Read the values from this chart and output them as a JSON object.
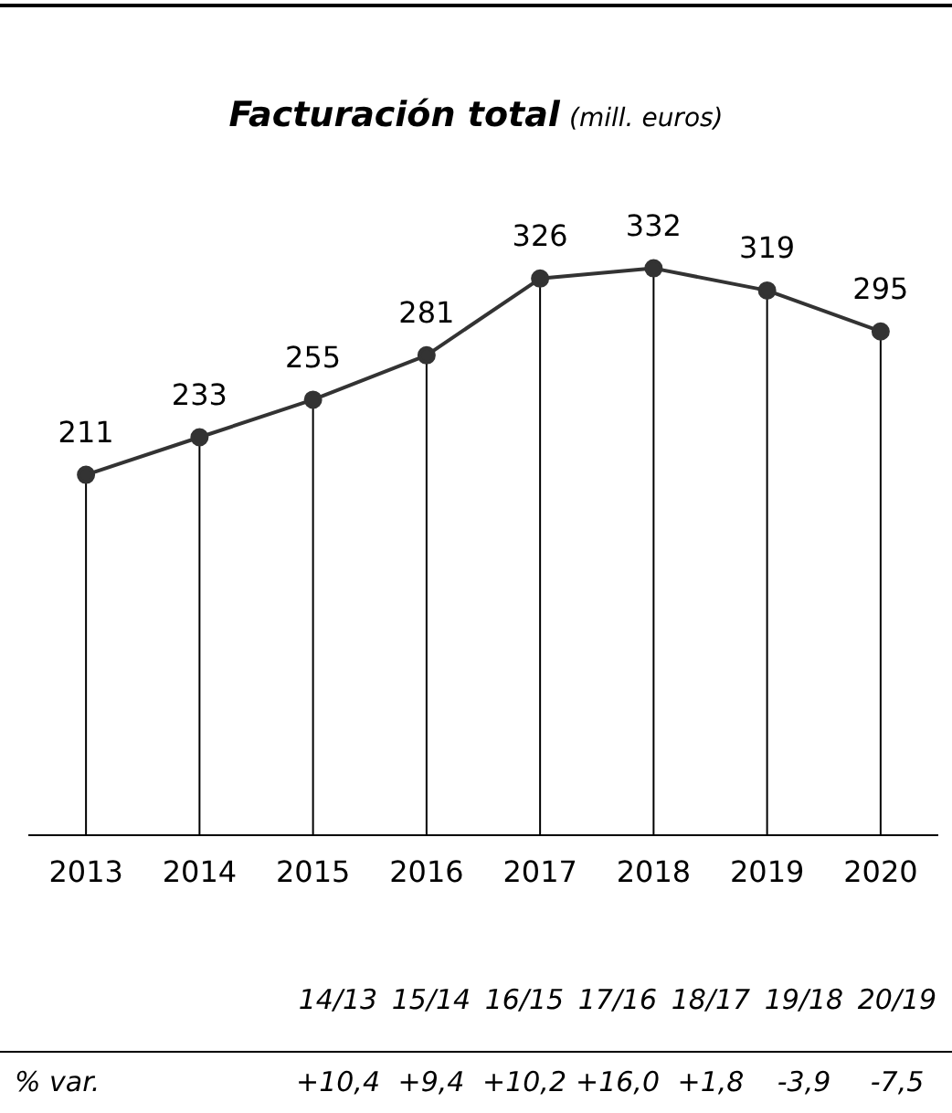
{
  "chart_data": {
    "type": "line",
    "title": "Facturación total",
    "subtitle": "(mill. euros)",
    "categories": [
      "2013",
      "2014",
      "2015",
      "2016",
      "2017",
      "2018",
      "2019",
      "2020"
    ],
    "values": [
      211,
      233,
      255,
      281,
      326,
      332,
      319,
      295
    ],
    "color": "#333333",
    "marker": "circle",
    "data_labels": true,
    "grid": "x",
    "annotations": [
      "14/13",
      "15/14",
      "16/15",
      "17/16",
      "18/17",
      "19/18",
      "20/19",
      "% var.",
      "+10,4",
      "+9,4",
      "+10,2",
      "+16,0",
      "+1,8",
      "-3,9",
      "-7,5"
    ]
  }
}
